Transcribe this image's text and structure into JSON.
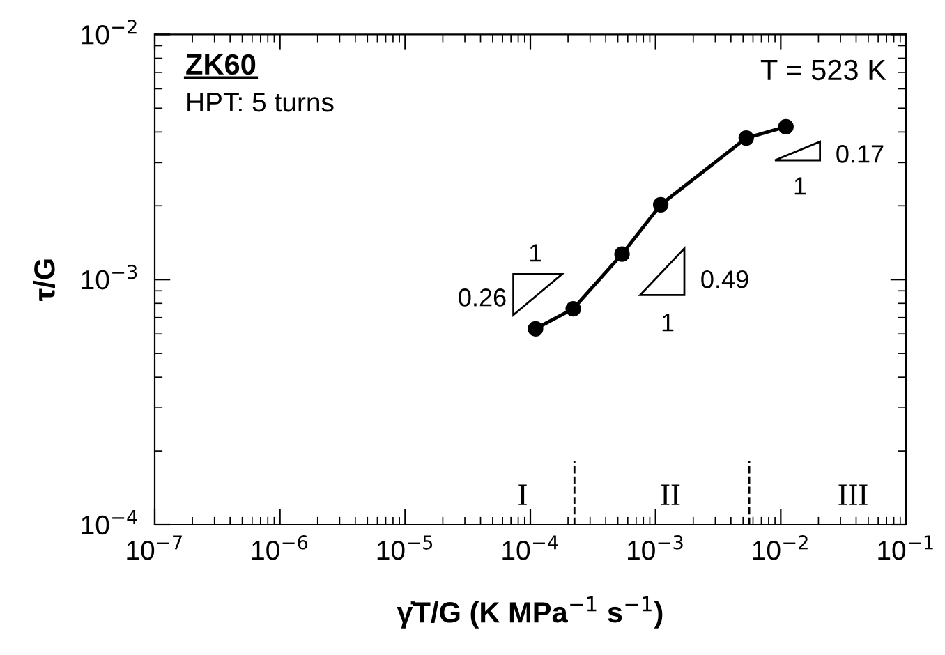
{
  "chart_data": {
    "type": "line",
    "xlabel": "γ̇T/G (K MPa$^{−1}$ s$^{−1}$)",
    "ylabel": "τ/G",
    "x": [
      0.00011,
      0.00022,
      0.00054,
      0.0011,
      0.0053,
      0.011
    ],
    "series": [
      {
        "color": "#000000",
        "values": [
          0.00063,
          0.00076,
          0.00127,
          0.00202,
          0.00378,
          0.0042
        ]
      }
    ],
    "log": "xy",
    "xlim": [
      1e-07,
      0.1
    ],
    "ylim": [
      0.0001,
      0.01
    ],
    "xticks": [
      {
        "value": 1e-07,
        "label": "10$^{−7}$"
      },
      {
        "value": 1e-06,
        "label": "10$^{−6}$"
      },
      {
        "value": 1e-05,
        "label": "10$^{−5}$"
      },
      {
        "value": 0.0001,
        "label": "10$^{−4}$"
      },
      {
        "value": 0.001,
        "label": "10$^{−3}$"
      },
      {
        "value": 0.01,
        "label": "10$^{−2}$"
      },
      {
        "value": 0.1,
        "label": "10$^{−1}$"
      }
    ],
    "yticks": [
      {
        "value": 0.0001,
        "label": "10$^{−4}$"
      },
      {
        "value": 0.001,
        "label": "10$^{−3}$"
      },
      {
        "value": 0.01,
        "label": "10$^{−2}$"
      }
    ],
    "ref_lines": [
      {
        "axis": "x",
        "value": 0.000225,
        "line_style": "dashed",
        "color": "#000000"
      },
      {
        "axis": "x",
        "value": 0.0056,
        "line_style": "dashed",
        "color": "#000000"
      }
    ],
    "annotations": [
      "ZK60",
      "HPT: 5 turns",
      "T = 523 K",
      "I",
      "II",
      "III",
      "1",
      "0.26",
      "1",
      "0.49",
      "1",
      "0.17"
    ],
    "marker": "circle",
    "line_style": "solid",
    "grid": false
  }
}
